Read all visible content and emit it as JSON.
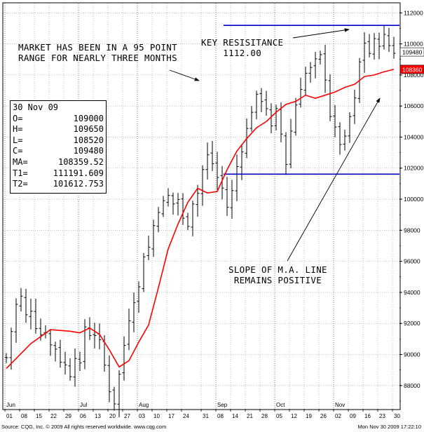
{
  "chart_data": {
    "type": "ohlc",
    "y_axis_ticks": [
      "112000",
      "110000",
      "108000",
      "106000",
      "104000",
      "102000",
      "100000",
      "98000",
      "96000",
      "94000",
      "92000",
      "90000",
      "88000"
    ],
    "ylim": [
      86500,
      112600
    ],
    "x_tick_labels": [
      "01",
      "08",
      "15",
      "22",
      "29",
      "06",
      "13",
      "20",
      "27",
      "03",
      "10",
      "17",
      "24",
      "31",
      "08",
      "14",
      "21",
      "28",
      "05",
      "12",
      "19",
      "26",
      "02",
      "09",
      "16",
      "23",
      "30"
    ],
    "month_labels": [
      {
        "label": "Jun",
        "at": 0
      },
      {
        "label": "Jul",
        "at": 5
      },
      {
        "label": "Aug",
        "at": 9
      },
      {
        "label": "Sep",
        "at": 14
      },
      {
        "label": "Oct",
        "at": 18
      },
      {
        "label": "Nov",
        "at": 22
      }
    ],
    "close_path": [
      [
        0,
        89800
      ],
      [
        1,
        91500
      ],
      [
        2,
        93200
      ],
      [
        3,
        93700
      ],
      [
        4,
        92500
      ],
      [
        5,
        92900
      ],
      [
        6,
        91800
      ],
      [
        7,
        91300
      ],
      [
        8,
        91500
      ],
      [
        9,
        90600
      ],
      [
        10,
        90400
      ],
      [
        11,
        89600
      ],
      [
        12,
        89300
      ],
      [
        13,
        88700
      ],
      [
        14,
        89900
      ],
      [
        15,
        89300
      ],
      [
        16,
        91800
      ],
      [
        17,
        91300
      ],
      [
        18,
        91300
      ],
      [
        19,
        90800
      ],
      [
        20,
        89300
      ],
      [
        21,
        87700
      ],
      [
        22,
        86900
      ],
      [
        23,
        88700
      ],
      [
        24,
        90600
      ],
      [
        25,
        92300
      ],
      [
        26,
        93500
      ],
      [
        27,
        94300
      ],
      [
        28,
        96400
      ],
      [
        29,
        96900
      ],
      [
        30,
        98300
      ],
      [
        31,
        99300
      ],
      [
        32,
        99800
      ],
      [
        33,
        100200
      ],
      [
        34,
        99700
      ],
      [
        35,
        100000
      ],
      [
        36,
        98700
      ],
      [
        37,
        98400
      ],
      [
        38,
        99800
      ],
      [
        39,
        100400
      ],
      [
        40,
        101900
      ],
      [
        41,
        102800
      ],
      [
        42,
        102300
      ],
      [
        43,
        101400
      ],
      [
        44,
        100700
      ],
      [
        45,
        99500
      ],
      [
        46,
        100500
      ],
      [
        47,
        102100
      ],
      [
        48,
        103200
      ],
      [
        49,
        104500
      ],
      [
        50,
        105700
      ],
      [
        51,
        106600
      ],
      [
        52,
        106400
      ],
      [
        53,
        105900
      ],
      [
        54,
        104600
      ],
      [
        55,
        105700
      ],
      [
        56,
        104200
      ],
      [
        57,
        102300
      ],
      [
        58,
        104400
      ],
      [
        59,
        106100
      ],
      [
        60,
        107200
      ],
      [
        61,
        108100
      ],
      [
        62,
        108400
      ],
      [
        63,
        108900
      ],
      [
        64,
        109200
      ],
      [
        65,
        107800
      ],
      [
        66,
        105400
      ],
      [
        67,
        104500
      ],
      [
        68,
        103600
      ],
      [
        69,
        103900
      ],
      [
        70,
        105300
      ],
      [
        71,
        106400
      ],
      [
        72,
        108800
      ],
      [
        73,
        110100
      ],
      [
        74,
        109400
      ],
      [
        75,
        110200
      ],
      [
        76,
        110000
      ],
      [
        77,
        110500
      ],
      [
        78,
        109900
      ],
      [
        79,
        109480
      ]
    ],
    "ma_series": [
      [
        0,
        89100
      ],
      [
        5,
        90700
      ],
      [
        9,
        91600
      ],
      [
        13,
        91500
      ],
      [
        15,
        91400
      ],
      [
        17,
        91700
      ],
      [
        19,
        91300
      ],
      [
        21,
        90300
      ],
      [
        23,
        89200
      ],
      [
        25,
        89600
      ],
      [
        27,
        90800
      ],
      [
        29,
        91900
      ],
      [
        31,
        94300
      ],
      [
        33,
        96800
      ],
      [
        35,
        98400
      ],
      [
        37,
        99800
      ],
      [
        39,
        100700
      ],
      [
        41,
        100400
      ],
      [
        43,
        100500
      ],
      [
        45,
        101900
      ],
      [
        47,
        103100
      ],
      [
        49,
        103900
      ],
      [
        51,
        104600
      ],
      [
        53,
        105000
      ],
      [
        55,
        105600
      ],
      [
        57,
        106100
      ],
      [
        59,
        106300
      ],
      [
        61,
        106700
      ],
      [
        63,
        106500
      ],
      [
        65,
        106700
      ],
      [
        67,
        106900
      ],
      [
        69,
        107200
      ],
      [
        71,
        107400
      ],
      [
        73,
        107900
      ],
      [
        75,
        108000
      ],
      [
        77,
        108200
      ],
      [
        79,
        108360
      ]
    ],
    "series": [
      {
        "name": "MA",
        "color": "#ff0000"
      }
    ],
    "trendlines": [
      {
        "name": "T1",
        "value": 111191.609,
        "x_from": 45,
        "x_to": 80,
        "color": "#0000cc"
      },
      {
        "name": "T2",
        "value": 101612.753,
        "x_from": 45,
        "x_to": 80,
        "color": "#0000cc"
      }
    ],
    "price_tags": [
      {
        "label": "109480",
        "value": 109480,
        "bg": "#ffffff",
        "fg": "#000000"
      },
      {
        "label": "108360",
        "value": 108360,
        "bg": "#ff0000",
        "fg": "#ffffff"
      }
    ],
    "annotations": {
      "range": [
        "MARKET HAS BEEN IN A 95 POINT",
        "RANGE FOR NEARLY THREE MONTHS"
      ],
      "resistance": [
        "KEY RESISITANCE",
        "1112.00"
      ],
      "slope": [
        "SLOPE OF M.A. LINE",
        "REMAINS POSITIVE"
      ]
    }
  },
  "ohlc_panel": {
    "date": "30 Nov 09",
    "rows": [
      {
        "k": "O=",
        "v": "109000"
      },
      {
        "k": "H=",
        "v": "109650"
      },
      {
        "k": "L=",
        "v": "108520"
      },
      {
        "k": "C=",
        "v": "109480"
      },
      {
        "k": "MA=",
        "v": "108359.52"
      },
      {
        "k": "T1=",
        "v": "111191.609"
      },
      {
        "k": "T2=",
        "v": "101612.753"
      }
    ]
  },
  "footer": {
    "source": "Source: CQG, Inc. © 2009 All rights reserved worldwide. www.cqg.com",
    "timestamp": "Mon Nov 30 2009 17:22:10"
  }
}
